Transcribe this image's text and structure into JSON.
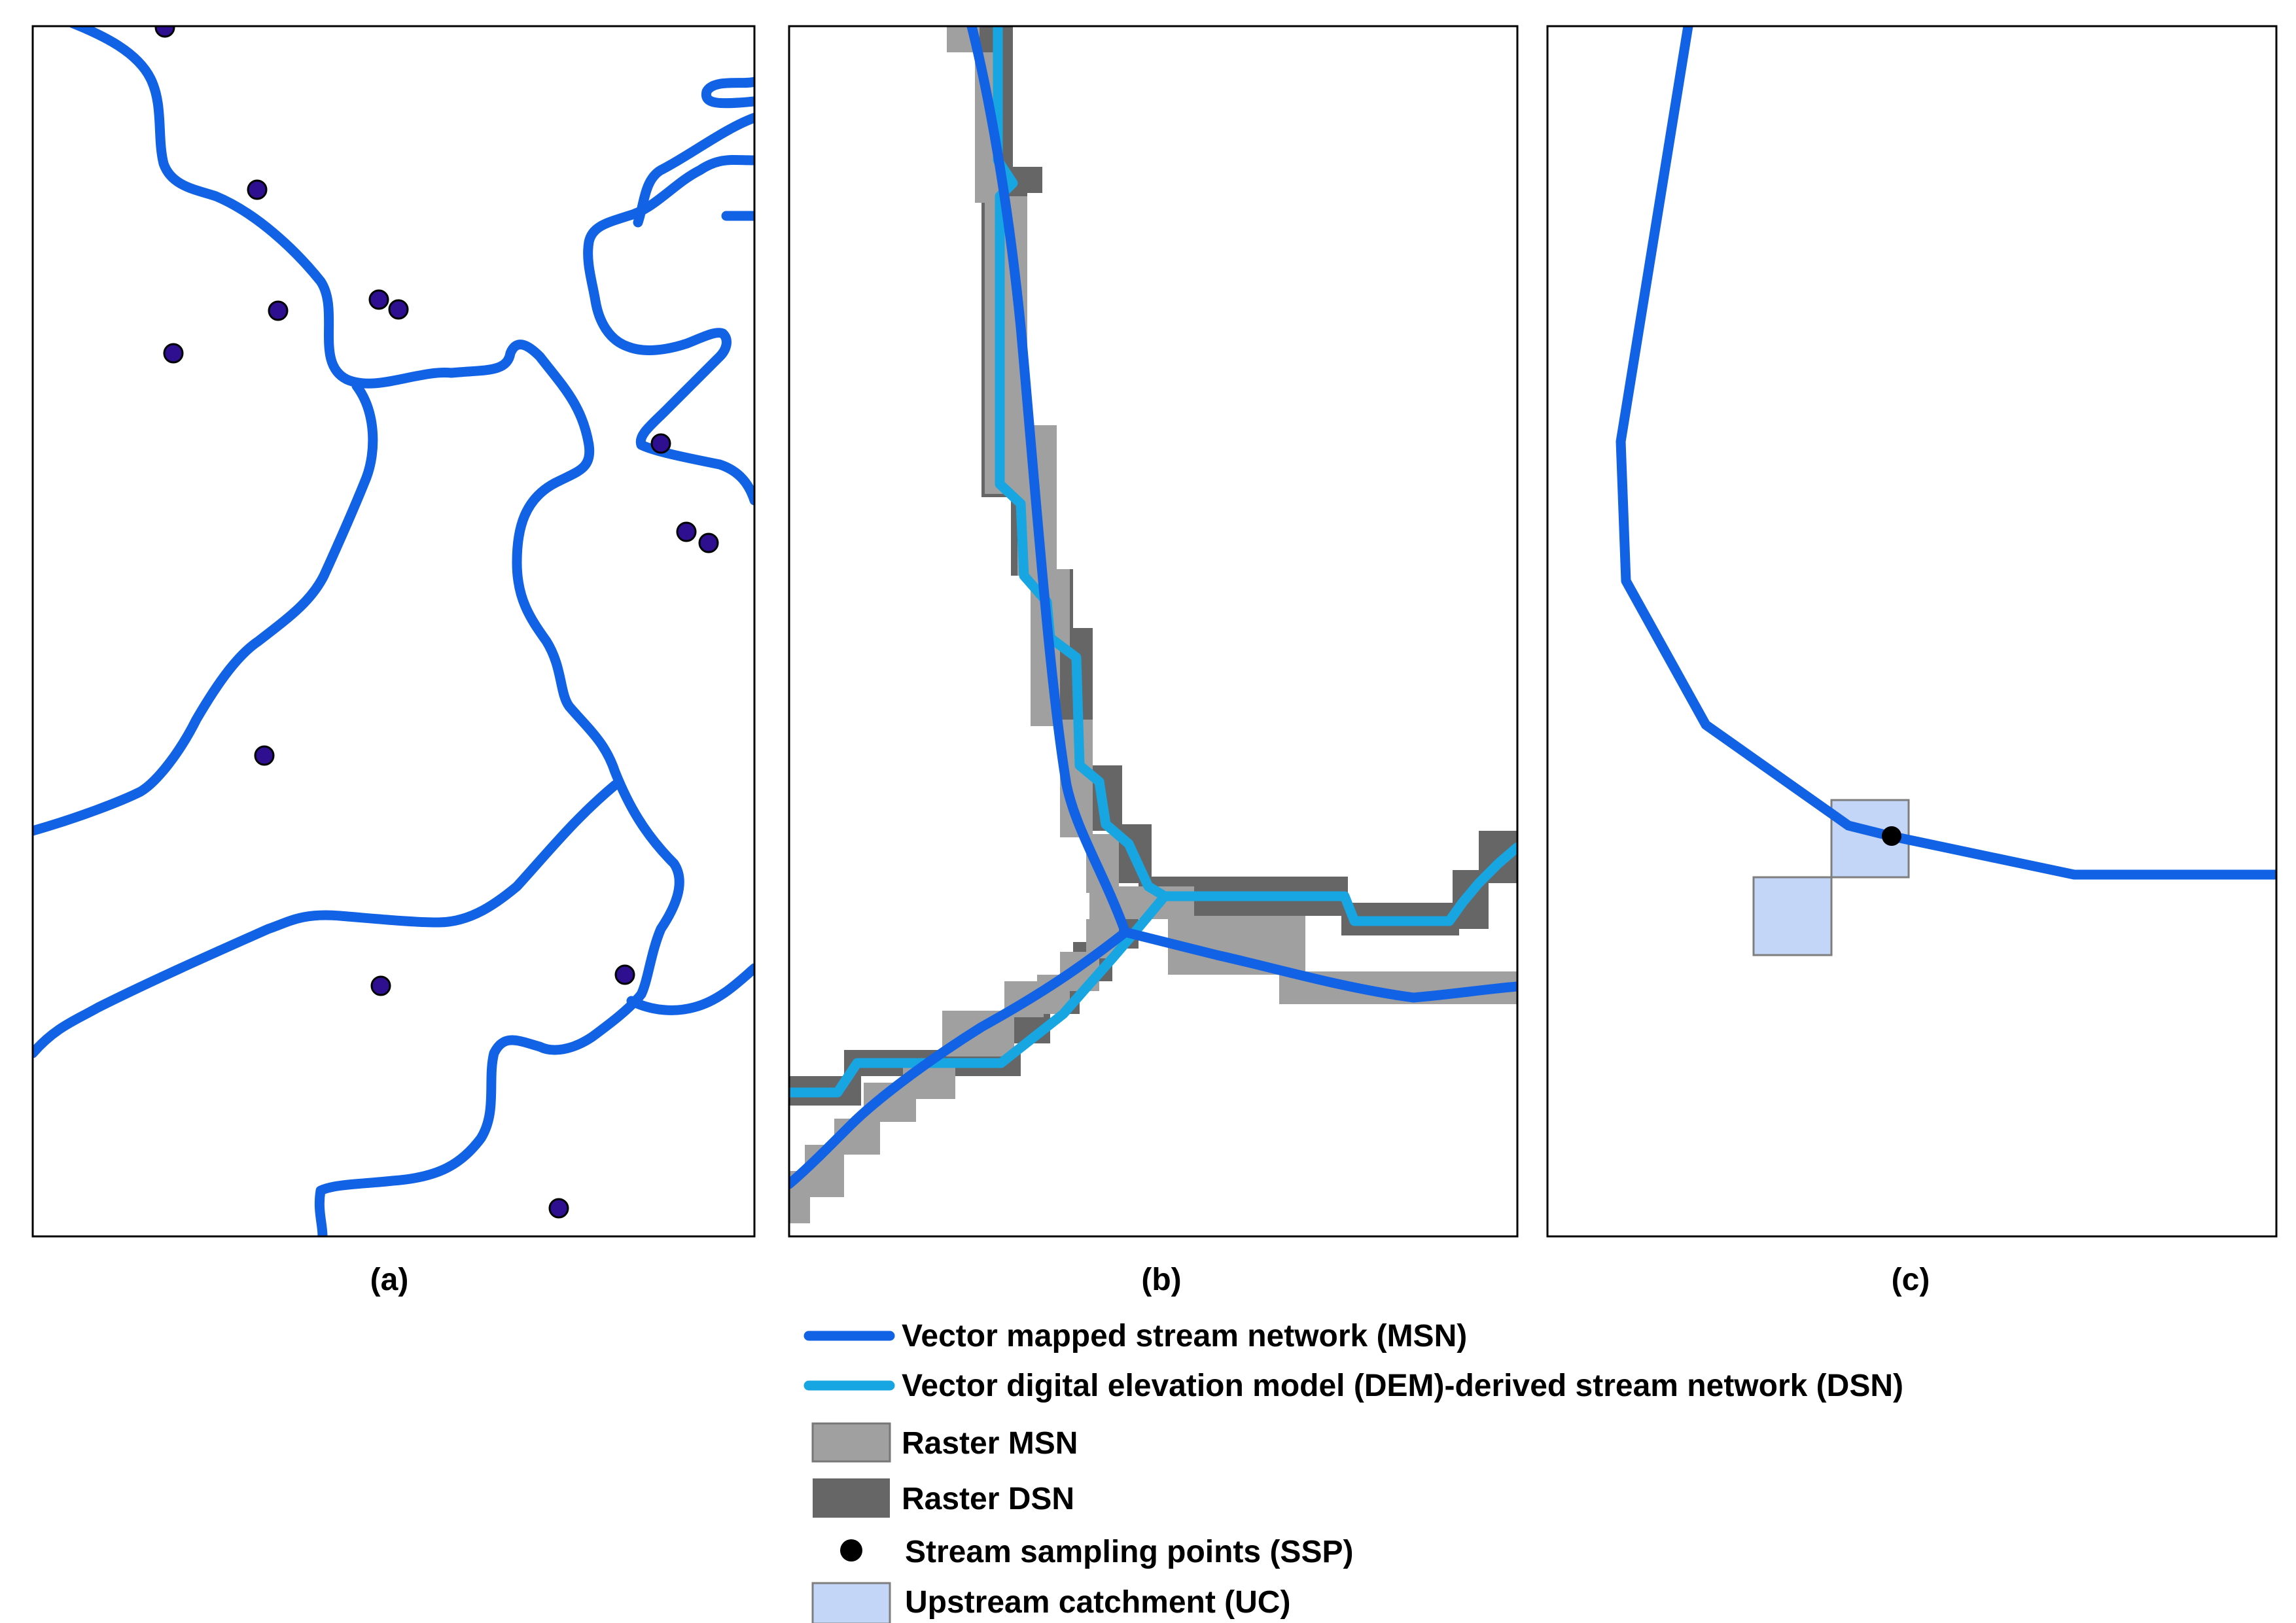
{
  "figure": {
    "panels": [
      {
        "id": "a",
        "label": "(a)"
      },
      {
        "id": "b",
        "label": "(b)"
      },
      {
        "id": "c",
        "label": "(c)"
      }
    ],
    "legend": {
      "msn_vector": "Vector mapped stream network (MSN)",
      "dsn_vector": "Vector digital elevation model (DEM)-derived stream network (DSN)",
      "raster_msn": "Raster MSN",
      "raster_dsn": "Raster DSN",
      "ssp": "Stream sampling points (SSP)",
      "uc": "Upstream catchment (UC)"
    }
  },
  "colors": {
    "msn": "#1262E6",
    "dsn": "#17A6E2",
    "raster_msn": "#A0A0A0",
    "raster_dsn": "#666666",
    "ssp_panel_a": "#2E0F8F",
    "ssp_panel_c": "#000000",
    "uc": "#C3D6F7"
  }
}
